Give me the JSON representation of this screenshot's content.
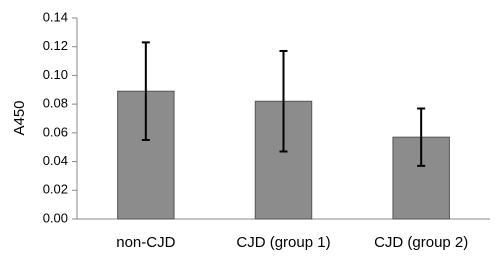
{
  "chart_data": {
    "type": "bar",
    "y_label": "A450",
    "categories": [
      "non-CJD",
      "CJD (group 1)",
      "CJD (group 2)"
    ],
    "values": [
      0.089,
      0.082,
      0.057
    ],
    "errors": [
      0.034,
      0.035,
      0.02
    ],
    "color": "#8c8c8c",
    "ylim": [
      0,
      0.14
    ],
    "yticks": [
      {
        "value": 0,
        "label": "0.00"
      },
      0.02,
      0.04,
      0.06,
      0.08,
      {
        "value": 0.1,
        "label": "0.10"
      },
      0.12,
      0.14
    ],
    "grid": false
  }
}
